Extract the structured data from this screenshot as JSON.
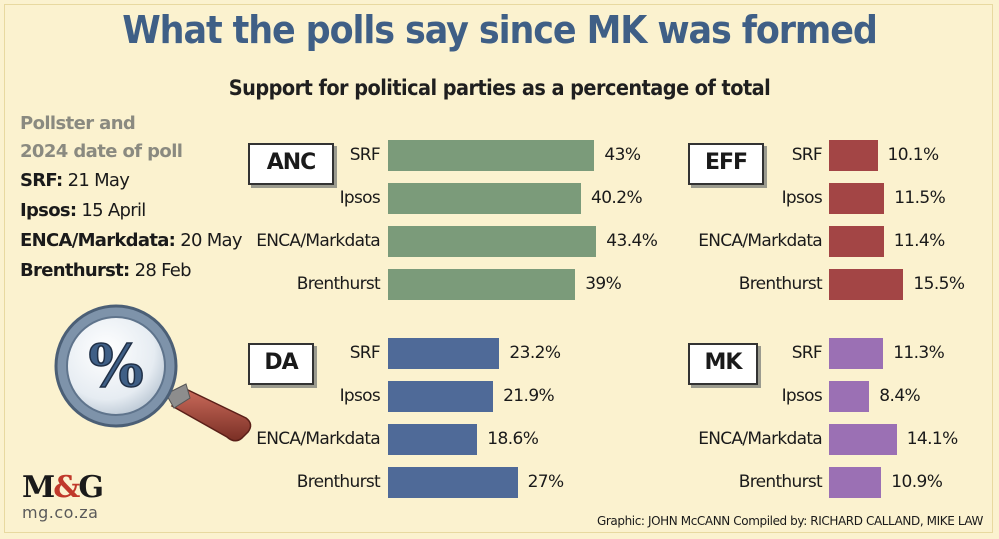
{
  "title": "What the polls say since MK was formed",
  "subtitle": "Support for political parties as a percentage of total",
  "legend": {
    "heading_line1": "Pollster and",
    "heading_line2": "2024 date of poll",
    "items": [
      {
        "pollster": "SRF:",
        "date": "21 May"
      },
      {
        "pollster": "Ipsos:",
        "date": "15 April"
      },
      {
        "pollster": "ENCA/Markdata:",
        "date": "20 May"
      },
      {
        "pollster": "Brenthurst:",
        "date": "28 Feb"
      }
    ]
  },
  "magnifier_symbol": "%",
  "logo": {
    "text_m": "M",
    "text_amp": "&",
    "text_g": "G",
    "url": "mg.co.za"
  },
  "credit": "Graphic: JOHN McCANN  Compiled by: RICHARD CALLAND, MIKE LAW",
  "chart_data": [
    {
      "type": "bar",
      "party": "ANC",
      "color": "#7b9b7a",
      "categories": [
        "SRF",
        "Ipsos",
        "ENCA/Markdata",
        "Brenthurst"
      ],
      "values": [
        43,
        40.2,
        43.4,
        39
      ],
      "value_labels": [
        "43%",
        "40.2%",
        "43.4%",
        "39%"
      ]
    },
    {
      "type": "bar",
      "party": "EFF",
      "color": "#a34545",
      "categories": [
        "SRF",
        "Ipsos",
        "ENCA/Markdata",
        "Brenthurst"
      ],
      "values": [
        10.1,
        11.5,
        11.4,
        15.5
      ],
      "value_labels": [
        "10.1%",
        "11.5%",
        "11.4%",
        "15.5%"
      ]
    },
    {
      "type": "bar",
      "party": "DA",
      "color": "#4f6a98",
      "categories": [
        "SRF",
        "Ipsos",
        "ENCA/Markdata",
        "Brenthurst"
      ],
      "values": [
        23.2,
        21.9,
        18.6,
        27
      ],
      "value_labels": [
        "23.2%",
        "21.9%",
        "18.6%",
        "27%"
      ]
    },
    {
      "type": "bar",
      "party": "MK",
      "color": "#9b70b4",
      "categories": [
        "SRF",
        "Ipsos",
        "ENCA/Markdata",
        "Brenthurst"
      ],
      "values": [
        11.3,
        8.4,
        14.1,
        10.9
      ],
      "value_labels": [
        "11.3%",
        "8.4%",
        "14.1%",
        "10.9%"
      ]
    }
  ]
}
